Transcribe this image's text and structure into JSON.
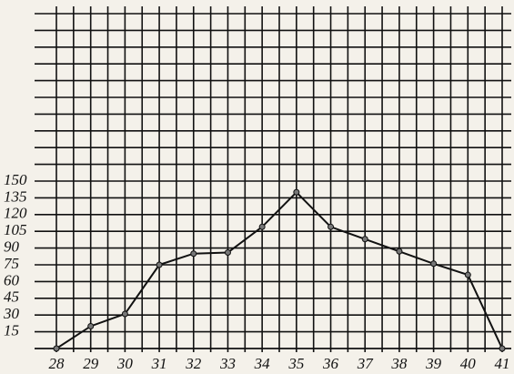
{
  "chart_data": {
    "type": "line",
    "x": [
      28,
      29,
      30,
      31,
      32,
      33,
      34,
      35,
      36,
      37,
      38,
      39,
      40,
      41
    ],
    "values": [
      0,
      20,
      31,
      75,
      85,
      86,
      109,
      140,
      109,
      98,
      87,
      76,
      66,
      0
    ],
    "color": "#111111",
    "xlim": [
      28,
      41
    ],
    "xticks": [
      28,
      29,
      30,
      31,
      32,
      33,
      34,
      35,
      36,
      37,
      38,
      39,
      40,
      41
    ],
    "ylim": [
      0,
      300
    ],
    "yticks": [
      15,
      30,
      45,
      60,
      75,
      90,
      105,
      120,
      135,
      150
    ],
    "grid": true
  }
}
